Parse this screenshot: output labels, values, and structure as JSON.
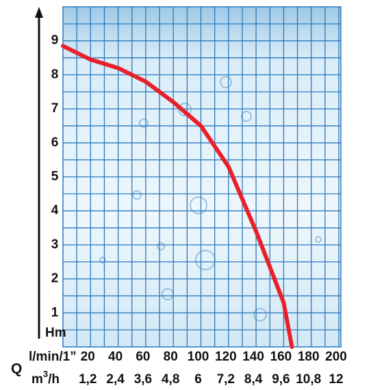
{
  "chart_data": {
    "type": "line",
    "y_label": "Hm",
    "x_label": "l/min/1”",
    "q_label": "Q",
    "x2_label": {
      "base": "m",
      "sup": "3",
      "rest": "/h"
    },
    "x": [
      0,
      20,
      40,
      60,
      80,
      100,
      120,
      140,
      160,
      166
    ],
    "series": [
      {
        "color": "#e8202a",
        "values": [
          8.85,
          8.45,
          8.2,
          7.8,
          7.2,
          6.5,
          5.3,
          3.4,
          1.3,
          0
        ]
      }
    ],
    "xlim": [
      0,
      200
    ],
    "ylim": [
      0,
      10
    ],
    "xticks": [
      20,
      40,
      60,
      80,
      100,
      120,
      140,
      160,
      180,
      200
    ],
    "yticks": [
      1,
      2,
      3,
      4,
      5,
      6,
      7,
      8,
      9
    ],
    "x2lim": [
      0,
      12
    ],
    "x2ticks": [
      {
        "value": 1.2,
        "label": "1,2"
      },
      {
        "value": 2.4,
        "label": "2,4"
      },
      {
        "value": 3.6,
        "label": "3,6"
      },
      {
        "value": 4.8,
        "label": "4,8"
      },
      {
        "value": 6,
        "label": "6"
      },
      {
        "value": 7.2,
        "label": "7,2"
      },
      {
        "value": 8.4,
        "label": "8,4"
      },
      {
        "value": 9.6,
        "label": "9,6"
      },
      {
        "value": 10.8,
        "label": "10,8"
      },
      {
        "value": 12,
        "label": "12"
      }
    ],
    "grid": true,
    "grid_color": "#2a78bf"
  }
}
